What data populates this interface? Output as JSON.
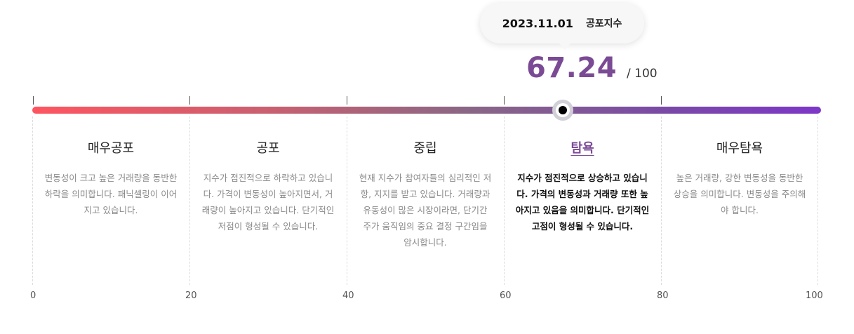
{
  "tooltip": {
    "date": "2023.11.01",
    "label": "공포지수"
  },
  "index": {
    "value": "67.24",
    "max": "/ 100",
    "value_number": 67.24
  },
  "scale": {
    "ticks": [
      "0",
      "20",
      "40",
      "60",
      "80",
      "100"
    ]
  },
  "categories": [
    {
      "title": "매우공포",
      "description": "변동성이 크고 높은 거래량을 동반한 하락을 의미합니다. 패닉셀링이 이어지고 있습니다.",
      "active": false
    },
    {
      "title": "공포",
      "description": "지수가 점진적으로 하락하고 있습니다. 가격이 변동성이 높아지면서, 거래량이 높아지고 있습니다. 단기적인 저점이 형성될 수 있습니다.",
      "active": false
    },
    {
      "title": "중립",
      "description": "현재 지수가 참여자들의 심리적인 저항, 지지를 받고 있습니다. 거래량과 유동성이 많은 시장이라면, 단기간 주가 움직임의 중요 결정 구간임을 암시합니다.",
      "active": false
    },
    {
      "title": "탐욕",
      "description": "지수가 점진적으로 상승하고 있습니다. 가격의 변동성과 거래량 또한 높아지고 있음을 의미합니다. 단기적인 고점이 형성될 수 있습니다.",
      "active": true
    },
    {
      "title": "매우탐욕",
      "description": "높은 거래량, 강한 변동성을 동반한 상승을 의미합니다. 변동성을 주의해야 합니다.",
      "active": false
    }
  ],
  "colors": {
    "accent": "#7b4a95",
    "bar_start": "#fe5560",
    "bar_end": "#7d37c8"
  }
}
